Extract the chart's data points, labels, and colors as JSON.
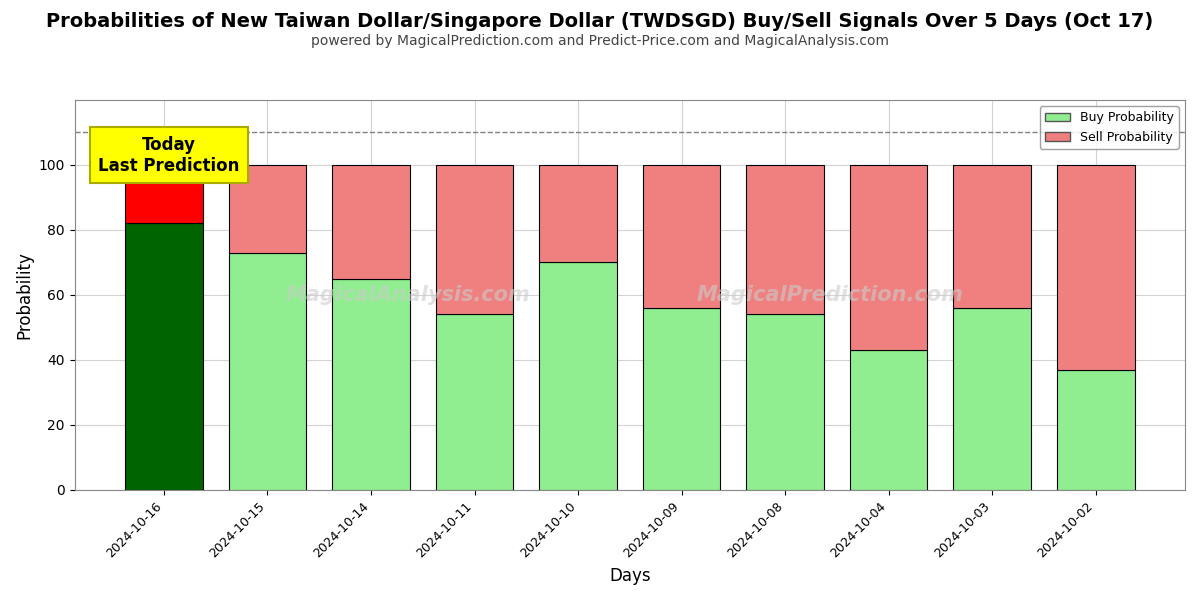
{
  "title": "Probabilities of New Taiwan Dollar/Singapore Dollar (TWDSGD) Buy/Sell Signals Over 5 Days (Oct 17)",
  "subtitle": "powered by MagicalPrediction.com and Predict-Price.com and MagicalAnalysis.com",
  "xlabel": "Days",
  "ylabel": "Probability",
  "dates": [
    "2024-10-16",
    "2024-10-15",
    "2024-10-14",
    "2024-10-11",
    "2024-10-10",
    "2024-10-09",
    "2024-10-08",
    "2024-10-04",
    "2024-10-03",
    "2024-10-02"
  ],
  "buy_values": [
    82,
    73,
    65,
    54,
    70,
    56,
    54,
    43,
    56,
    37
  ],
  "sell_values": [
    18,
    27,
    35,
    46,
    30,
    44,
    46,
    57,
    44,
    63
  ],
  "first_bar_buy_color": "#006400",
  "first_bar_sell_color": "#FF0000",
  "other_buy_color": "#90EE90",
  "other_sell_color": "#F08080",
  "bar_edge_color": "#000000",
  "bar_edge_width": 0.8,
  "ylim_max": 120,
  "yticks": [
    0,
    20,
    40,
    60,
    80,
    100
  ],
  "dashed_line_y": 110,
  "dashed_line_color": "#808080",
  "grid_color": "#D3D3D3",
  "background_color": "#FFFFFF",
  "annotation_text": "Today\nLast Prediction",
  "annotation_bg_color": "#FFFF00",
  "annotation_border_color": "#AAAA00",
  "annotation_fontsize": 12,
  "title_fontsize": 14,
  "subtitle_fontsize": 10,
  "legend_buy_color": "#90EE90",
  "legend_sell_color": "#F08080",
  "legend_buy_label": "Buy Probability",
  "legend_sell_label": "Sell Probability",
  "bar_width": 0.75,
  "watermark1": "MagicalAnalysis.com",
  "watermark2": "MagicalPrediction.com"
}
